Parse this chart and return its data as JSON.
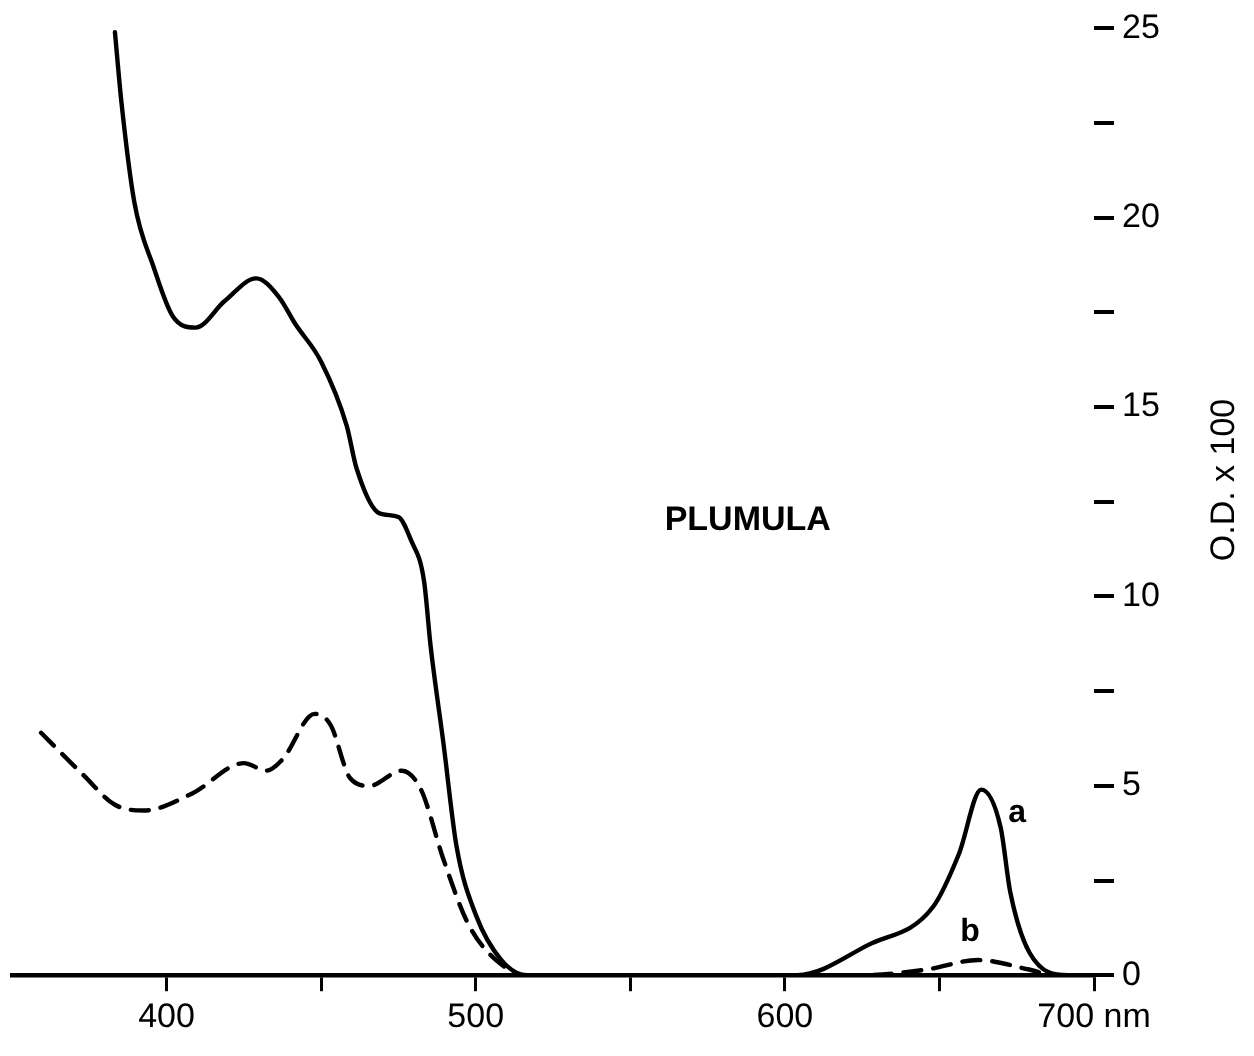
{
  "chart_data": {
    "type": "line",
    "ylabel": "O.D. x 100",
    "annotations": [
      "PLUMULA"
    ],
    "series": [
      {
        "name": "a",
        "color": "#000000",
        "line_style": "solid",
        "x": [
          383.3,
          385.4,
          389.6,
          395.8,
          402,
          409.4,
          418.8,
          429,
          436.4,
          441.6,
          450,
          458.3,
          461.4,
          468.8,
          475,
          479,
          483.3,
          485.4,
          489.6,
          493.8,
          500,
          508.3,
          516.6,
          604,
          627,
          647.9,
          656.3,
          663.5,
          669.8,
          672.9,
          679.1,
          691.6,
          700
        ],
        "values": [
          24.9,
          23.05,
          20.4,
          18.7,
          17.4,
          17.1,
          17.8,
          18.4,
          17.9,
          17.2,
          16.2,
          14.5,
          13.4,
          12.2,
          12.1,
          11.5,
          10.4,
          8.7,
          6.1,
          3.4,
          1.6,
          0.4,
          0,
          0,
          0.8,
          1.8,
          3.2,
          4.9,
          3.9,
          2.2,
          0.6,
          0,
          0
        ]
      },
      {
        "name": "b",
        "color": "#000000",
        "line_style": "dashed",
        "x": [
          359.4,
          372.9,
          383.3,
          392.7,
          408.3,
          425,
          432.3,
          437.5,
          447.9,
          453.1,
          459.4,
          465.6,
          476,
          482.3,
          489.6,
          497.9,
          510.4,
          514.6,
          625,
          645.8,
          662.5,
          679,
          687,
          700
        ],
        "values": [
          6.4,
          5.3,
          4.5,
          4.35,
          4.8,
          5.6,
          5.4,
          5.7,
          6.9,
          6.6,
          5.2,
          5.0,
          5.4,
          4.9,
          3.05,
          1.3,
          0.15,
          0,
          0,
          0.15,
          0.4,
          0.15,
          0,
          0
        ]
      }
    ],
    "xlim": [
      350,
      700
    ],
    "xticks": [
      400,
      {
        "value": 450,
        "label": null
      },
      500,
      {
        "value": 550,
        "label": null
      },
      600,
      {
        "value": 650,
        "label": null
      },
      {
        "value": 700,
        "label": "700 nm"
      }
    ],
    "ylim": [
      0,
      25
    ],
    "yticks": [
      0,
      {
        "value": 2.5,
        "label": null
      },
      5,
      {
        "value": 7.5,
        "label": null
      },
      10,
      {
        "value": 12.5,
        "label": null
      },
      15,
      {
        "value": 17.5,
        "label": null
      },
      20,
      {
        "value": 22.5,
        "label": null
      },
      25
    ],
    "grid": false,
    "legend": false,
    "marker": "none"
  }
}
